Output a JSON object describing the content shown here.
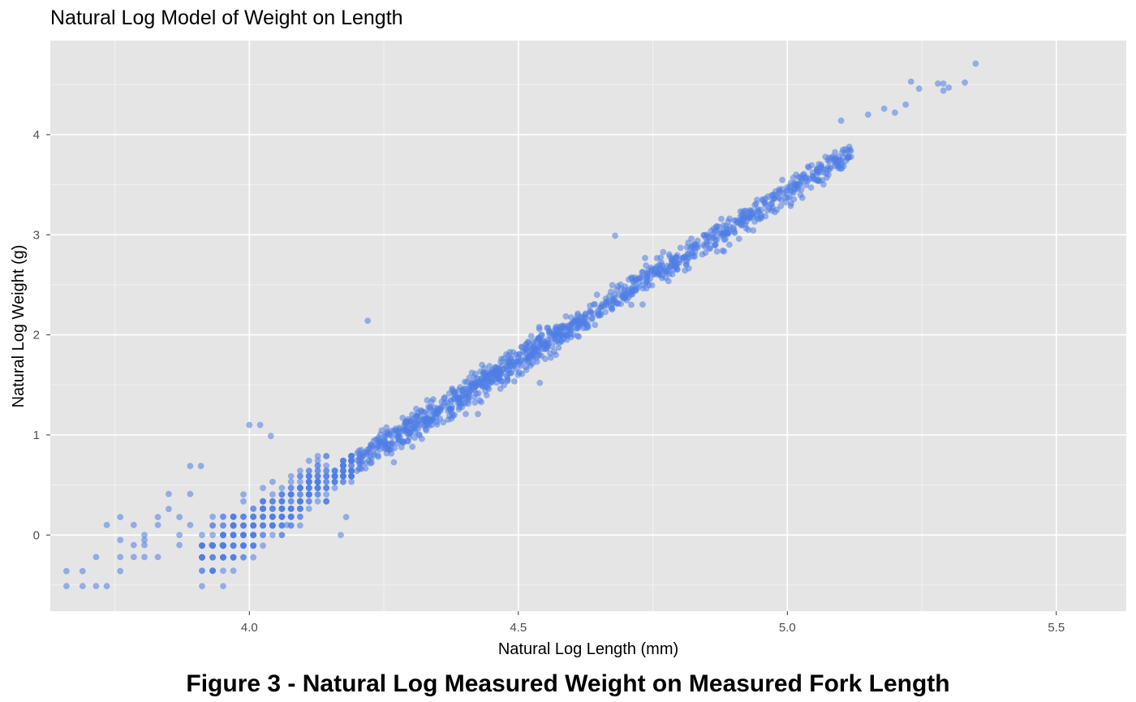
{
  "chart_data": {
    "type": "scatter",
    "title": "Natural Log Model of Weight on Length",
    "xlabel": "Natural Log Length (mm)",
    "ylabel": "Natural Log Weight (g)",
    "xlim": [
      3.63,
      5.63
    ],
    "ylim": [
      -0.76,
      4.94
    ],
    "xticks": [
      "4.0",
      "4.5",
      "5.0",
      "5.5"
    ],
    "yticks": [
      "0",
      "1",
      "2",
      "3",
      "4"
    ],
    "grid": true,
    "legend": "none",
    "point_color": "#4f7ee6",
    "panel_background": "#e5e5e5",
    "trend": {
      "intercept": -13.43,
      "slope": 3.372
    },
    "bulk_points": {
      "count": 1500,
      "x_range": [
        3.66,
        5.35
      ],
      "scatter_sd": 0.1
    },
    "points": [
      [
        3.66,
        -0.36
      ],
      [
        3.66,
        -0.51
      ],
      [
        3.69,
        -0.51
      ],
      [
        3.69,
        -0.36
      ],
      [
        3.715,
        -0.51
      ],
      [
        3.715,
        -0.22
      ],
      [
        3.735,
        -0.51
      ],
      [
        3.735,
        0.1
      ],
      [
        3.76,
        0.18
      ],
      [
        3.76,
        -0.05
      ],
      [
        3.76,
        -0.22
      ],
      [
        3.76,
        -0.36
      ],
      [
        3.785,
        0.1
      ],
      [
        3.785,
        -0.22
      ],
      [
        3.785,
        -0.1
      ],
      [
        3.805,
        -0.05
      ],
      [
        3.805,
        -0.22
      ],
      [
        3.805,
        0.0
      ],
      [
        3.805,
        -0.1
      ],
      [
        3.83,
        0.18
      ],
      [
        3.83,
        0.1
      ],
      [
        3.83,
        -0.22
      ],
      [
        3.85,
        0.41
      ],
      [
        3.85,
        0.26
      ],
      [
        3.87,
        0.18
      ],
      [
        3.87,
        0.0
      ],
      [
        3.87,
        -0.1
      ],
      [
        3.89,
        0.69
      ],
      [
        3.89,
        0.41
      ],
      [
        3.89,
        0.1
      ],
      [
        3.91,
        0.69
      ],
      [
        3.93,
        -0.1
      ],
      [
        3.95,
        -0.1
      ],
      [
        4.18,
        0.18
      ],
      [
        4.17,
        0.0
      ],
      [
        4.07,
        0.1
      ],
      [
        4.22,
        2.14
      ],
      [
        4.42,
        1.61
      ],
      [
        4.54,
        1.52
      ],
      [
        4.55,
        1.76
      ],
      [
        4.68,
        2.99
      ],
      [
        4.71,
        2.3
      ],
      [
        4.59,
        2.0
      ],
      [
        4.61,
        1.99
      ],
      [
        4.0,
        1.1
      ],
      [
        4.02,
        1.1
      ],
      [
        4.04,
        0.99
      ],
      [
        5.23,
        4.53
      ],
      [
        5.245,
        4.46
      ],
      [
        5.28,
        4.51
      ],
      [
        5.29,
        4.51
      ],
      [
        5.3,
        4.47
      ],
      [
        5.33,
        4.52
      ],
      [
        5.35,
        4.71
      ],
      [
        5.29,
        4.44
      ],
      [
        5.22,
        4.3
      ],
      [
        5.2,
        4.22
      ],
      [
        5.18,
        4.26
      ],
      [
        5.15,
        4.2
      ],
      [
        5.1,
        4.14
      ]
    ]
  },
  "caption": "Figure 3 - Natural Log Measured Weight on Measured Fork Length"
}
